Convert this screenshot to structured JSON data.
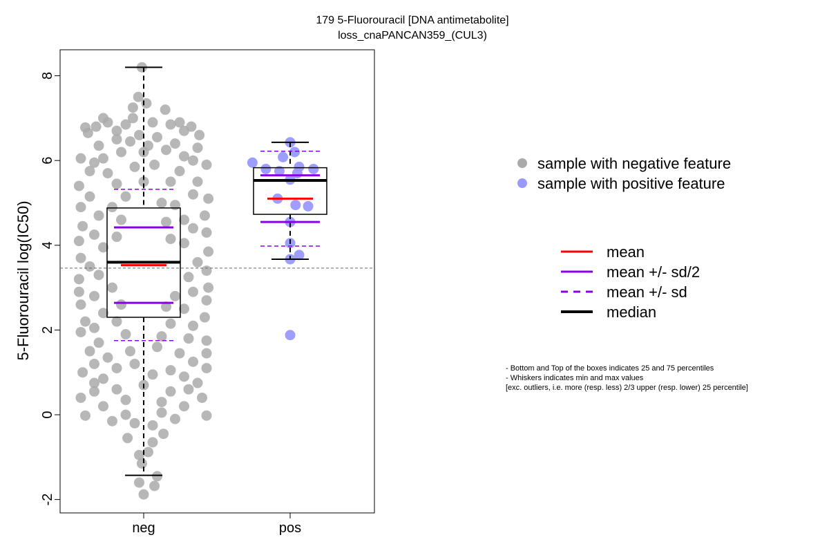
{
  "chart_data": {
    "type": "box-scatter",
    "title": "179 5-Fluorouracil [DNA antimetabolite]",
    "subtitle": "loss_cnaPANCAN359_(CUL3)",
    "ylabel": "5-Fluorouracil log(IC50)",
    "ylim": [
      -2.3,
      8.6
    ],
    "yticks": [
      -2,
      0,
      2,
      4,
      6,
      8
    ],
    "categories": [
      "neg",
      "pos"
    ],
    "reference_line": 3.46,
    "groups": [
      {
        "name": "neg",
        "color": "#aaaaaa",
        "box": {
          "q1": 2.3,
          "median": 3.6,
          "q3": 4.88,
          "whisker_low": -1.43,
          "whisker_high": 8.2
        },
        "mean": 3.53,
        "mean_minus_half_sd": 2.64,
        "mean_plus_half_sd": 4.42,
        "mean_minus_sd": 1.75,
        "mean_plus_sd": 5.32,
        "points": [
          [
            -0.02,
            8.2
          ],
          [
            -0.06,
            7.5
          ],
          [
            0.03,
            7.35
          ],
          [
            -0.12,
            7.25
          ],
          [
            0.24,
            7.2
          ],
          [
            -0.4,
            6.9
          ],
          [
            -0.65,
            6.78
          ],
          [
            0.53,
            6.8
          ],
          [
            -0.53,
            6.8
          ],
          [
            0.45,
            6.7
          ],
          [
            -0.2,
            6.85
          ],
          [
            0.1,
            6.9
          ],
          [
            0.3,
            6.85
          ],
          [
            -0.3,
            6.7
          ],
          [
            -0.5,
            6.35
          ],
          [
            -0.7,
            6.05
          ],
          [
            -0.6,
            5.75
          ],
          [
            0.6,
            6.3
          ],
          [
            0.7,
            5.9
          ],
          [
            0.6,
            5.5
          ],
          [
            -0.72,
            5.4
          ],
          [
            0.72,
            5.1
          ],
          [
            -0.7,
            4.9
          ],
          [
            -0.68,
            4.45
          ],
          [
            0.68,
            4.7
          ],
          [
            -0.72,
            4.1
          ],
          [
            0.7,
            4.3
          ],
          [
            -0.7,
            3.7
          ],
          [
            0.72,
            3.85
          ],
          [
            -0.72,
            3.2
          ],
          [
            0.7,
            3.4
          ],
          [
            -0.72,
            2.9
          ],
          [
            0.72,
            3.0
          ],
          [
            -0.7,
            2.6
          ],
          [
            0.7,
            2.7
          ],
          [
            -0.65,
            2.2
          ],
          [
            0.68,
            2.3
          ],
          [
            -0.7,
            1.95
          ],
          [
            0.7,
            1.75
          ],
          [
            -0.6,
            1.5
          ],
          [
            0.7,
            1.45
          ],
          [
            -0.68,
            1.0
          ],
          [
            0.7,
            1.1
          ],
          [
            -0.55,
            0.75
          ],
          [
            0.6,
            0.75
          ],
          [
            -0.7,
            0.4
          ],
          [
            0.65,
            0.4
          ],
          [
            -0.65,
            -0.02
          ],
          [
            0.7,
            -0.02
          ],
          [
            -0.45,
            0.2
          ],
          [
            0.45,
            0.2
          ],
          [
            -0.2,
            0.0
          ],
          [
            0.2,
            0.05
          ],
          [
            -0.35,
            -0.15
          ],
          [
            0.35,
            -0.1
          ],
          [
            -0.1,
            -0.2
          ],
          [
            0.1,
            -0.25
          ],
          [
            -0.18,
            -0.55
          ],
          [
            0.1,
            -0.65
          ],
          [
            0.22,
            -0.45
          ],
          [
            -0.05,
            -0.95
          ],
          [
            0.05,
            -0.88
          ],
          [
            -0.02,
            -1.15
          ],
          [
            0.15,
            -1.45
          ],
          [
            -0.05,
            -1.6
          ],
          [
            0.12,
            -1.68
          ],
          [
            0.0,
            -1.88
          ],
          [
            -0.3,
            6.5
          ],
          [
            0.15,
            6.55
          ],
          [
            0.35,
            6.4
          ],
          [
            -0.15,
            6.45
          ],
          [
            0.45,
            6.1
          ],
          [
            -0.45,
            6.05
          ],
          [
            0.0,
            6.2
          ],
          [
            -0.25,
            6.2
          ],
          [
            0.25,
            6.25
          ],
          [
            -0.55,
            5.95
          ],
          [
            0.55,
            6.0
          ],
          [
            -0.4,
            5.7
          ],
          [
            0.4,
            5.75
          ],
          [
            -0.1,
            5.85
          ],
          [
            0.12,
            5.9
          ],
          [
            -0.3,
            5.45
          ],
          [
            0.3,
            5.5
          ],
          [
            -0.6,
            5.15
          ],
          [
            0.55,
            5.2
          ],
          [
            0.0,
            5.5
          ],
          [
            -0.2,
            5.15
          ],
          [
            0.2,
            5.0
          ],
          [
            -0.5,
            4.7
          ],
          [
            0.45,
            4.6
          ],
          [
            -0.35,
            4.9
          ],
          [
            0.35,
            4.95
          ],
          [
            -0.55,
            4.25
          ],
          [
            0.55,
            4.4
          ],
          [
            -0.25,
            4.6
          ],
          [
            0.25,
            4.55
          ],
          [
            -0.45,
            3.95
          ],
          [
            0.45,
            4.05
          ],
          [
            -0.6,
            3.5
          ],
          [
            0.6,
            3.6
          ],
          [
            -0.3,
            4.2
          ],
          [
            0.3,
            4.15
          ],
          [
            -0.5,
            3.3
          ],
          [
            0.5,
            3.25
          ],
          [
            -0.55,
            2.8
          ],
          [
            0.55,
            2.9
          ],
          [
            -0.35,
            3.0
          ],
          [
            0.35,
            2.8
          ],
          [
            -0.45,
            2.4
          ],
          [
            0.45,
            2.5
          ],
          [
            -0.25,
            2.6
          ],
          [
            0.25,
            2.55
          ],
          [
            -0.55,
            2.05
          ],
          [
            0.55,
            2.1
          ],
          [
            -0.3,
            2.2
          ],
          [
            0.3,
            2.15
          ],
          [
            -0.5,
            1.7
          ],
          [
            0.5,
            1.8
          ],
          [
            -0.2,
            1.9
          ],
          [
            0.2,
            1.85
          ],
          [
            -0.4,
            1.35
          ],
          [
            0.4,
            1.45
          ],
          [
            -0.15,
            1.5
          ],
          [
            0.15,
            1.6
          ],
          [
            -0.55,
            1.2
          ],
          [
            0.55,
            1.25
          ],
          [
            -0.3,
            1.1
          ],
          [
            0.3,
            1.05
          ],
          [
            -0.45,
            0.85
          ],
          [
            0.45,
            0.9
          ],
          [
            -0.1,
            1.2
          ],
          [
            0.1,
            0.95
          ],
          [
            -0.3,
            0.6
          ],
          [
            0.3,
            0.55
          ],
          [
            -0.55,
            0.55
          ],
          [
            0.5,
            0.6
          ],
          [
            0.0,
            0.7
          ],
          [
            -0.2,
            0.35
          ],
          [
            0.2,
            0.3
          ],
          [
            -0.62,
            6.65
          ],
          [
            0.62,
            6.6
          ],
          [
            -0.05,
            6.6
          ],
          [
            0.4,
            6.9
          ],
          [
            -0.45,
            7.0
          ],
          [
            0.05,
            6.35
          ],
          [
            -0.12,
            7.0
          ]
        ]
      },
      {
        "name": "pos",
        "color": "#9999ff",
        "box": {
          "q1": 4.73,
          "median": 5.53,
          "q3": 5.83,
          "whisker_low": 3.67,
          "whisker_high": 6.43
        },
        "mean": 5.1,
        "mean_minus_half_sd": 4.55,
        "mean_plus_half_sd": 5.65,
        "mean_minus_sd": 3.98,
        "mean_plus_sd": 6.22,
        "points": [
          [
            0.0,
            6.43
          ],
          [
            0.05,
            6.2
          ],
          [
            -0.08,
            6.08
          ],
          [
            -0.42,
            5.95
          ],
          [
            -0.27,
            5.8
          ],
          [
            -0.12,
            5.75
          ],
          [
            0.1,
            5.85
          ],
          [
            0.26,
            5.8
          ],
          [
            0.08,
            5.7
          ],
          [
            0.0,
            5.55
          ],
          [
            -0.14,
            5.1
          ],
          [
            0.06,
            4.95
          ],
          [
            0.2,
            4.92
          ],
          [
            0.0,
            4.55
          ],
          [
            0.0,
            4.05
          ],
          [
            0.1,
            3.77
          ],
          [
            0.0,
            3.67
          ],
          [
            0.0,
            1.88
          ]
        ]
      }
    ],
    "legend": {
      "points": [
        {
          "label": "sample with negative feature",
          "color": "#aaaaaa"
        },
        {
          "label": "sample with positive feature",
          "color": "#9999ff"
        }
      ],
      "lines": [
        {
          "label": "mean",
          "color": "#ff0000",
          "style": "solid"
        },
        {
          "label": "mean +/- sd/2",
          "color": "#8a00e6",
          "style": "solid"
        },
        {
          "label": "mean +/- sd",
          "color": "#8a00e6",
          "style": "dashed"
        },
        {
          "label": "median",
          "color": "#000000",
          "style": "bold"
        }
      ]
    },
    "notes": [
      "- Bottom and Top of the boxes indicates 25 and 75 percentiles",
      "- Whiskers indicates min and max values",
      "[exc. outliers, i.e. more (resp. less) 2/3 upper (resp. lower) 25 percentile]"
    ]
  }
}
